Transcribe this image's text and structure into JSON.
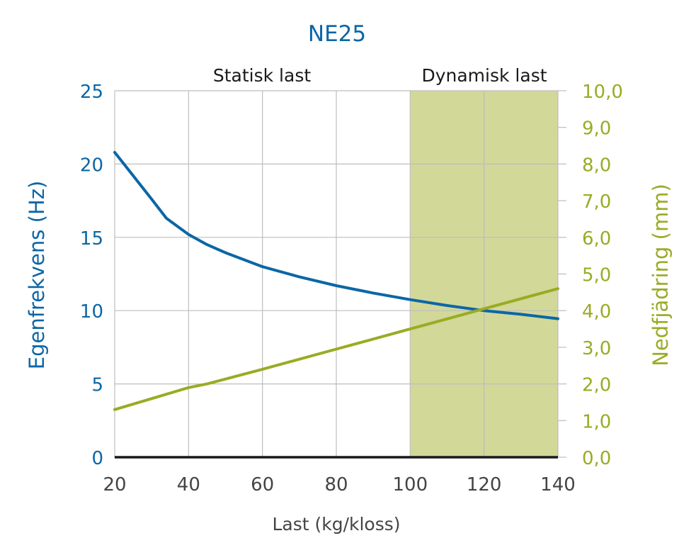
{
  "chart_data": {
    "type": "line",
    "title": "NE25",
    "xlabel": "Last (kg/kloss)",
    "ylabel_left": "Egenfrekvens (Hz)",
    "ylabel_right": "Nedfjädring (mm)",
    "xlim": [
      20,
      140
    ],
    "ylim_left": [
      0,
      25
    ],
    "ylim_right": [
      0,
      10
    ],
    "x_ticks": [
      "20",
      "40",
      "60",
      "80",
      "100",
      "120",
      "140"
    ],
    "y_left_ticks": [
      "0",
      "5",
      "10",
      "15",
      "20",
      "25"
    ],
    "y_right_ticks": [
      "0,0",
      "1,0",
      "2,0",
      "3,0",
      "4,0",
      "5,0",
      "6,0",
      "7,0",
      "8,0",
      "9,0",
      "10,0"
    ],
    "grid": true,
    "regions": [
      {
        "label": "Statisk last",
        "x_range": [
          20,
          100
        ],
        "shaded": false
      },
      {
        "label": "Dynamisk last",
        "x_range": [
          100,
          140
        ],
        "shaded": true,
        "color": "#d2d898"
      }
    ],
    "series": [
      {
        "axis": "left",
        "color": "#0b66a6",
        "x": [
          20,
          25,
          30,
          34,
          40,
          45,
          50,
          60,
          70,
          80,
          90,
          100,
          110,
          120,
          130,
          140
        ],
        "values": [
          20.8,
          19.2,
          17.6,
          16.3,
          15.2,
          14.5,
          13.95,
          13.0,
          12.3,
          11.7,
          11.2,
          10.75,
          10.35,
          10.0,
          9.75,
          9.45
        ]
      },
      {
        "axis": "right",
        "color": "#9aab24",
        "x": [
          20,
          30,
          40,
          45,
          60,
          80,
          100,
          120,
          140
        ],
        "values": [
          1.3,
          1.6,
          1.9,
          2.0,
          2.4,
          2.95,
          3.5,
          4.05,
          4.6
        ]
      }
    ],
    "colors": {
      "left_axis": "#0b66a6",
      "right_axis": "#9aab24",
      "grid": "#bdbdbd",
      "baseline": "#1a1a1a",
      "text": "#1a1a1a",
      "tick_text": "#444444"
    }
  }
}
